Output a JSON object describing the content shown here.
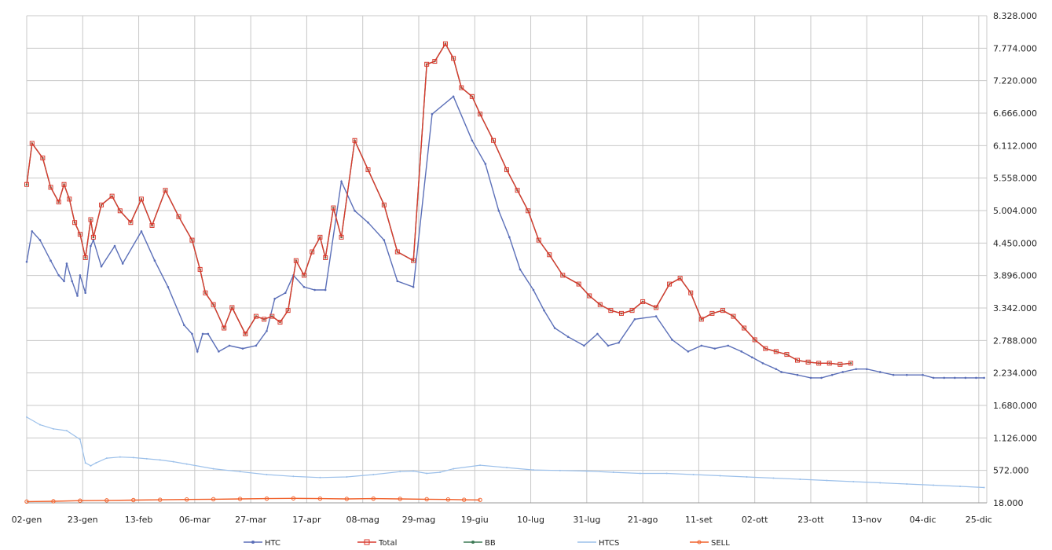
{
  "chart_data": {
    "type": "line",
    "x_tick_labels": [
      "02-gen",
      "23-gen",
      "13-feb",
      "06-mar",
      "27-mar",
      "17-apr",
      "08-mag",
      "29-mag",
      "19-giu",
      "10-lug",
      "31-lug",
      "21-ago",
      "11-set",
      "02-ott",
      "23-ott",
      "13-nov",
      "04-dic",
      "25-dic"
    ],
    "y_tick_labels": [
      "18.000",
      "572.000",
      "1.126.000",
      "1.680.000",
      "2.234.000",
      "2.788.000",
      "3.342.000",
      "3.896.000",
      "4.450.000",
      "5.004.000",
      "5.558.000",
      "6.112.000",
      "6.666.000",
      "7.220.000",
      "7.774.000",
      "8.328.000"
    ],
    "ylim": [
      18000,
      8328000
    ],
    "grid": true,
    "legend_position": "bottom",
    "colors": {
      "HTC": "#5b6fb8",
      "Total": "#d93a2e",
      "BB": "#3d7a55",
      "HTCS": "#9cc0ea",
      "SELL": "#f0602a",
      "grid": "#c8c8c8"
    },
    "series": [
      {
        "name": "HTC",
        "style": "line",
        "x": [
          0,
          2,
          5,
          9,
          12,
          14,
          15,
          17,
          19,
          20,
          22,
          24,
          25,
          28,
          33,
          36,
          43,
          48,
          53,
          59,
          62,
          64,
          66,
          68,
          72,
          76,
          81,
          86,
          90,
          93,
          97,
          100,
          104,
          108,
          112,
          118,
          123,
          128,
          134,
          139,
          145,
          152,
          160,
          167,
          172,
          177,
          181,
          185,
          190,
          194,
          198,
          203,
          209,
          214,
          218,
          222,
          228,
          236,
          242,
          248,
          253,
          258,
          263,
          268,
          272,
          276,
          281,
          283,
          289,
          294,
          298,
          302,
          306,
          311,
          315,
          320,
          325,
          330,
          336,
          340,
          344,
          348,
          352,
          356,
          359
        ],
        "values": [
          4130000,
          4650000,
          4500000,
          4150000,
          3900000,
          3800000,
          4100000,
          3800000,
          3550000,
          3900000,
          3600000,
          4400000,
          4500000,
          4050000,
          4400000,
          4100000,
          4650000,
          4150000,
          3700000,
          3050000,
          2900000,
          2600000,
          2900000,
          2900000,
          2600000,
          2700000,
          2650000,
          2700000,
          2950000,
          3500000,
          3600000,
          3900000,
          3700000,
          3650000,
          3650000,
          5500000,
          5000000,
          4800000,
          4500000,
          3800000,
          3700000,
          6650000,
          6950000,
          6200000,
          5800000,
          5000000,
          4550000,
          4000000,
          3650000,
          3300000,
          3000000,
          2850000,
          2700000,
          2900000,
          2700000,
          2750000,
          3150000,
          3200000,
          2800000,
          2600000,
          2700000,
          2650000,
          2700000,
          2600000,
          2500000,
          2400000,
          2300000,
          2250000,
          2200000,
          2150000,
          2150000,
          2200000,
          2250000,
          2300000,
          2300000,
          2250000,
          2200000,
          2200000,
          2200000,
          2150000,
          2150000,
          2150000,
          2150000,
          2150000,
          2150000
        ]
      },
      {
        "name": "Total",
        "style": "markers",
        "x": [
          0,
          2,
          6,
          9,
          12,
          14,
          16,
          18,
          20,
          22,
          24,
          25,
          28,
          32,
          35,
          39,
          43,
          47,
          52,
          57,
          62,
          65,
          67,
          70,
          74,
          77,
          82,
          86,
          89,
          92,
          95,
          98,
          101,
          104,
          107,
          110,
          112,
          115,
          118,
          123,
          128,
          134,
          139,
          145,
          150,
          153,
          157,
          160,
          163,
          167,
          170,
          175,
          180,
          184,
          188,
          192,
          196,
          201,
          207,
          211,
          215,
          219,
          223,
          227,
          231,
          236,
          241,
          245,
          249,
          253,
          257,
          261,
          265,
          269,
          273,
          277,
          281,
          285,
          289,
          293,
          297,
          301,
          305,
          309
        ],
        "values": [
          5450000,
          6150000,
          5900000,
          5400000,
          5150000,
          5450000,
          5200000,
          4800000,
          4600000,
          4200000,
          4850000,
          4550000,
          5100000,
          5250000,
          5000000,
          4800000,
          5200000,
          4750000,
          5350000,
          4900000,
          4500000,
          4000000,
          3600000,
          3400000,
          3000000,
          3350000,
          2900000,
          3200000,
          3150000,
          3200000,
          3100000,
          3300000,
          4150000,
          3900000,
          4300000,
          4550000,
          4200000,
          5050000,
          4550000,
          6200000,
          5700000,
          5100000,
          4300000,
          4150000,
          7500000,
          7550000,
          7850000,
          7600000,
          7100000,
          6950000,
          6650000,
          6200000,
          5700000,
          5350000,
          5000000,
          4500000,
          4250000,
          3900000,
          3750000,
          3550000,
          3400000,
          3300000,
          3250000,
          3300000,
          3450000,
          3350000,
          3750000,
          3850000,
          3600000,
          3150000,
          3250000,
          3300000,
          3200000,
          3000000,
          2800000,
          2650000,
          2600000,
          2550000,
          2450000,
          2420000,
          2400000,
          2400000,
          2380000,
          2400000
        ]
      },
      {
        "name": "BB",
        "style": "line",
        "x": [
          0,
          2,
          6,
          9,
          12,
          14,
          16,
          18,
          20,
          22,
          24,
          25,
          28,
          32,
          35,
          39,
          43,
          47,
          52,
          57,
          62,
          65,
          67,
          70,
          74,
          77,
          82,
          86,
          89,
          92,
          95,
          98,
          101,
          104,
          107,
          110,
          112,
          115,
          118,
          123,
          128,
          134,
          139,
          145,
          150,
          153,
          157,
          160,
          163,
          167,
          170,
          175,
          180,
          184,
          188,
          192,
          196,
          201,
          207,
          211,
          215,
          219,
          223,
          227,
          231,
          236,
          241,
          245,
          249,
          253,
          257,
          261,
          265,
          269,
          273,
          277,
          281,
          285,
          289,
          293,
          297,
          301,
          305,
          309
        ],
        "values": [
          5450000,
          6150000,
          5900000,
          5400000,
          5150000,
          5450000,
          5200000,
          4800000,
          4600000,
          4200000,
          4850000,
          4550000,
          5100000,
          5250000,
          5000000,
          4800000,
          5200000,
          4750000,
          5350000,
          4900000,
          4500000,
          4000000,
          3600000,
          3400000,
          3000000,
          3350000,
          2900000,
          3200000,
          3150000,
          3200000,
          3100000,
          3300000,
          4150000,
          3900000,
          4300000,
          4550000,
          4200000,
          5050000,
          4550000,
          6200000,
          5700000,
          5100000,
          4300000,
          4150000,
          7500000,
          7550000,
          7850000,
          7600000,
          7100000,
          6950000,
          6650000,
          6200000,
          5700000,
          5350000,
          5000000,
          4500000,
          4250000,
          3900000,
          3750000,
          3550000,
          3400000,
          3300000,
          3250000,
          3300000,
          3450000,
          3350000,
          3750000,
          3850000,
          3600000,
          3150000,
          3250000,
          3300000,
          3200000,
          3000000,
          2800000,
          2650000,
          2600000,
          2550000,
          2450000,
          2420000,
          2400000,
          2400000,
          2380000,
          2400000
        ]
      },
      {
        "name": "HTCS",
        "style": "line",
        "x": [
          0,
          5,
          10,
          15,
          20,
          22,
          24,
          26,
          30,
          35,
          40,
          45,
          50,
          55,
          60,
          70,
          80,
          90,
          100,
          110,
          120,
          130,
          140,
          145,
          150,
          155,
          160,
          170,
          180,
          190,
          200,
          210,
          220,
          230,
          240,
          250,
          260,
          270,
          280,
          290,
          300,
          310,
          320,
          330,
          340,
          350,
          359
        ],
        "values": [
          1480000,
          1350000,
          1280000,
          1250000,
          1100000,
          700000,
          650000,
          700000,
          780000,
          800000,
          790000,
          770000,
          750000,
          720000,
          680000,
          600000,
          550000,
          500000,
          470000,
          450000,
          460000,
          500000,
          550000,
          560000,
          520000,
          540000,
          600000,
          660000,
          620000,
          580000,
          570000,
          560000,
          540000,
          520000,
          520000,
          500000,
          480000,
          460000,
          440000,
          420000,
          400000,
          380000,
          360000,
          340000,
          320000,
          300000,
          280000
        ]
      },
      {
        "name": "SELL",
        "style": "markers",
        "x": [
          0,
          10,
          20,
          30,
          40,
          50,
          60,
          70,
          80,
          90,
          100,
          110,
          120,
          130,
          140,
          150,
          158,
          164,
          170
        ],
        "values": [
          40000,
          45000,
          55000,
          60000,
          65000,
          70000,
          75000,
          80000,
          85000,
          90000,
          95000,
          90000,
          85000,
          90000,
          85000,
          80000,
          75000,
          70000,
          68000
        ]
      }
    ]
  },
  "legend": {
    "htc": "HTC",
    "total": "Total",
    "bb": "BB",
    "htcs": "HTCS",
    "sell": "SELL"
  }
}
